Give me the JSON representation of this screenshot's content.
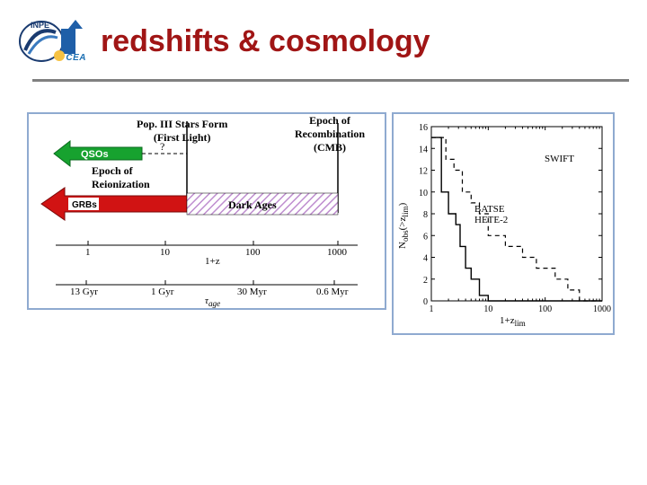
{
  "header": {
    "title": "redshifts & cosmology",
    "logo_text": "INPE",
    "badge_text": "CEA"
  },
  "left_panel": {
    "top_labels": {
      "popIII_1": "Pop. III Stars Form",
      "popIII_2": "(First Light)",
      "epoch_recomb_1": "Epoch of",
      "epoch_recomb_2": "Recombination",
      "epoch_recomb_3": "(CMB)"
    },
    "qsos_label": "QSOs",
    "question_mark": "?",
    "epoch_reion_1": "Epoch of",
    "epoch_reion_2": "Reionization",
    "grbs_label": "GRBs",
    "dark_ages": "Dark Ages",
    "axis1": {
      "ticks": [
        "1",
        "10",
        "100",
        "1000"
      ],
      "tick_x": [
        66,
        152,
        250,
        344
      ],
      "label": "1+z"
    },
    "axis2": {
      "ticks": [
        "13 Gyr",
        "1 Gyr",
        "30 Myr",
        "0.6 Myr"
      ],
      "tick_x": [
        50,
        140,
        240,
        328
      ],
      "label": "τ_age"
    },
    "colors": {
      "green": "#17a22f",
      "red": "#d11313",
      "hatch": "#be8dcf"
    }
  },
  "right_panel": {
    "type": "step_line",
    "xlim": [
      1,
      1000
    ],
    "ylim": [
      0,
      16
    ],
    "yticks": [
      0,
      2,
      4,
      6,
      8,
      10,
      12,
      14,
      16
    ],
    "xticks_log": [
      1,
      10,
      100,
      1000
    ],
    "xlabel": "1+z_lim",
    "ylabel": "N_obs(>z_lim)",
    "swift_label": "SWIFT",
    "batse_label_1": "BATSE",
    "batse_label_2": "HETE-2",
    "solid_series": [
      [
        1,
        15
      ],
      [
        1.5,
        15
      ],
      [
        1.5,
        10
      ],
      [
        2,
        10
      ],
      [
        2,
        8
      ],
      [
        2.7,
        8
      ],
      [
        2.7,
        7
      ],
      [
        3.2,
        7
      ],
      [
        3.2,
        5
      ],
      [
        4,
        5
      ],
      [
        4,
        3
      ],
      [
        5,
        3
      ],
      [
        5,
        2
      ],
      [
        7,
        2
      ],
      [
        7,
        0.5
      ],
      [
        10,
        0.5
      ],
      [
        10,
        0
      ],
      [
        1000,
        0
      ]
    ],
    "dashed_series": [
      [
        1,
        15
      ],
      [
        1.8,
        15
      ],
      [
        1.8,
        13
      ],
      [
        2.5,
        13
      ],
      [
        2.5,
        12
      ],
      [
        3.5,
        12
      ],
      [
        3.5,
        10
      ],
      [
        5,
        10
      ],
      [
        5,
        9
      ],
      [
        7,
        9
      ],
      [
        7,
        8
      ],
      [
        10,
        8
      ],
      [
        10,
        6
      ],
      [
        20,
        6
      ],
      [
        20,
        5
      ],
      [
        40,
        5
      ],
      [
        40,
        4
      ],
      [
        70,
        4
      ],
      [
        70,
        3
      ],
      [
        150,
        3
      ],
      [
        150,
        2
      ],
      [
        250,
        2
      ],
      [
        250,
        1
      ],
      [
        400,
        1
      ],
      [
        400,
        0
      ],
      [
        1000,
        0
      ]
    ],
    "colors": {
      "axis": "#000000",
      "background": "#ffffff"
    }
  }
}
